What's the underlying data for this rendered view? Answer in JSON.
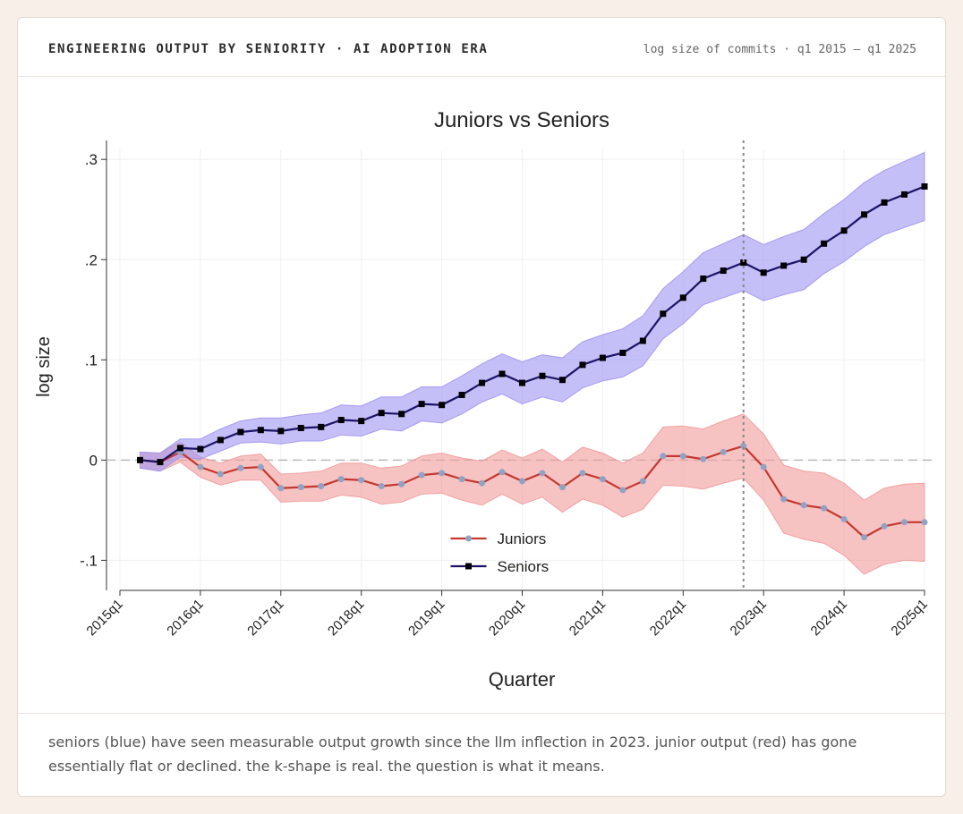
{
  "header": {
    "title": "ENGINEERING OUTPUT BY SENIORITY · AI ADOPTION ERA",
    "subtitle": "log size of commits · q1 2015 – q1 2025"
  },
  "chart_data": {
    "type": "line",
    "title": "Juniors vs Seniors",
    "x_label": "Quarter",
    "y_label": "log size",
    "x": [
      2015.25,
      2015.5,
      2015.75,
      2016,
      2016.25,
      2016.5,
      2016.75,
      2017,
      2017.25,
      2017.5,
      2017.75,
      2018,
      2018.25,
      2018.5,
      2018.75,
      2019,
      2019.25,
      2019.5,
      2019.75,
      2020,
      2020.25,
      2020.5,
      2020.75,
      2021,
      2021.25,
      2021.5,
      2021.75,
      2022,
      2022.25,
      2022.5,
      2022.75,
      2023,
      2023.25,
      2023.5,
      2023.75,
      2024,
      2024.25,
      2024.5,
      2024.75,
      2025
    ],
    "series": [
      {
        "name": "Juniors",
        "color": "#c4382f",
        "marker_color": "#8fa3c6",
        "marker": "circle",
        "band_color": "#f29a9a",
        "values": [
          0,
          -0.002,
          0.008,
          -0.007,
          -0.014,
          -0.008,
          -0.007,
          -0.028,
          -0.027,
          -0.026,
          -0.019,
          -0.02,
          -0.026,
          -0.024,
          -0.015,
          -0.013,
          -0.019,
          -0.023,
          -0.012,
          -0.021,
          -0.013,
          -0.027,
          -0.013,
          -0.019,
          -0.03,
          -0.021,
          0.004,
          0.004,
          0.001,
          0.008,
          0.014,
          -0.007,
          -0.039,
          -0.045,
          -0.048,
          -0.059,
          -0.077,
          -0.066,
          -0.062,
          -0.062
        ],
        "upper": [
          0.008,
          0.007,
          0.018,
          0.003,
          -0.003,
          0.004,
          0.006,
          -0.014,
          -0.013,
          -0.011,
          -0.003,
          -0.003,
          -0.008,
          -0.006,
          0.004,
          0.007,
          0.002,
          -0.001,
          0.01,
          0.002,
          0.011,
          -0.002,
          0.013,
          0.007,
          -0.003,
          0.007,
          0.033,
          0.034,
          0.031,
          0.039,
          0.046,
          0.026,
          -0.005,
          -0.011,
          -0.013,
          -0.023,
          -0.04,
          -0.028,
          -0.024,
          -0.023
        ],
        "lower": [
          -0.008,
          -0.011,
          -0.002,
          -0.017,
          -0.025,
          -0.02,
          -0.02,
          -0.042,
          -0.041,
          -0.041,
          -0.035,
          -0.037,
          -0.044,
          -0.042,
          -0.034,
          -0.033,
          -0.04,
          -0.045,
          -0.034,
          -0.044,
          -0.037,
          -0.052,
          -0.039,
          -0.045,
          -0.057,
          -0.049,
          -0.025,
          -0.026,
          -0.029,
          -0.023,
          -0.018,
          -0.04,
          -0.073,
          -0.079,
          -0.083,
          -0.095,
          -0.114,
          -0.104,
          -0.1,
          -0.101
        ]
      },
      {
        "name": "Seniors",
        "color": "#1a1466",
        "marker_color": "#000000",
        "marker": "square",
        "band_color": "#9d95f2",
        "values": [
          0,
          -0.002,
          0.012,
          0.011,
          0.02,
          0.028,
          0.03,
          0.029,
          0.032,
          0.033,
          0.04,
          0.039,
          0.047,
          0.046,
          0.056,
          0.055,
          0.065,
          0.077,
          0.086,
          0.077,
          0.084,
          0.08,
          0.095,
          0.102,
          0.107,
          0.119,
          0.146,
          0.162,
          0.181,
          0.189,
          0.197,
          0.187,
          0.194,
          0.2,
          0.216,
          0.229,
          0.245,
          0.257,
          0.265,
          0.273
        ],
        "upper": [
          0.008,
          0.007,
          0.021,
          0.021,
          0.031,
          0.039,
          0.042,
          0.042,
          0.045,
          0.047,
          0.055,
          0.054,
          0.063,
          0.063,
          0.073,
          0.073,
          0.084,
          0.096,
          0.106,
          0.098,
          0.105,
          0.102,
          0.118,
          0.125,
          0.131,
          0.144,
          0.171,
          0.188,
          0.207,
          0.216,
          0.225,
          0.215,
          0.223,
          0.23,
          0.246,
          0.26,
          0.277,
          0.289,
          0.298,
          0.307
        ],
        "lower": [
          -0.008,
          -0.011,
          0.003,
          0.001,
          0.009,
          0.017,
          0.018,
          0.016,
          0.019,
          0.019,
          0.025,
          0.024,
          0.031,
          0.029,
          0.039,
          0.037,
          0.046,
          0.058,
          0.066,
          0.056,
          0.063,
          0.058,
          0.072,
          0.079,
          0.083,
          0.094,
          0.121,
          0.136,
          0.155,
          0.162,
          0.169,
          0.159,
          0.165,
          0.17,
          0.186,
          0.198,
          0.213,
          0.225,
          0.232,
          0.239
        ]
      }
    ],
    "xlim": [
      2015,
      2025
    ],
    "xticks": [
      {
        "value": 2015,
        "label": "2015q1"
      },
      {
        "value": 2016,
        "label": "2016q1"
      },
      {
        "value": 2017,
        "label": "2017q1"
      },
      {
        "value": 2018,
        "label": "2018q1"
      },
      {
        "value": 2019,
        "label": "2019q1"
      },
      {
        "value": 2020,
        "label": "2020q1"
      },
      {
        "value": 2021,
        "label": "2021q1"
      },
      {
        "value": 2022,
        "label": "2022q1"
      },
      {
        "value": 2023,
        "label": "2023q1"
      },
      {
        "value": 2024,
        "label": "2024q1"
      },
      {
        "value": 2025,
        "label": "2025q1"
      }
    ],
    "ylim": [
      -0.13,
      0.31
    ],
    "yticks": [
      {
        "value": -0.1,
        "label": "-.1"
      },
      0,
      {
        "value": 0.1,
        "label": ".1"
      },
      {
        "value": 0.2,
        "label": ".2"
      },
      {
        "value": 0.3,
        "label": ".3"
      }
    ],
    "vline": 2022.75,
    "hline": 0,
    "grid": true,
    "legend": "lower center"
  },
  "caption": "seniors (blue) have seen measurable output growth since the llm inflection in 2023. junior output (red) has gone essentially flat or declined. the k-shape is real. the question is what it means."
}
